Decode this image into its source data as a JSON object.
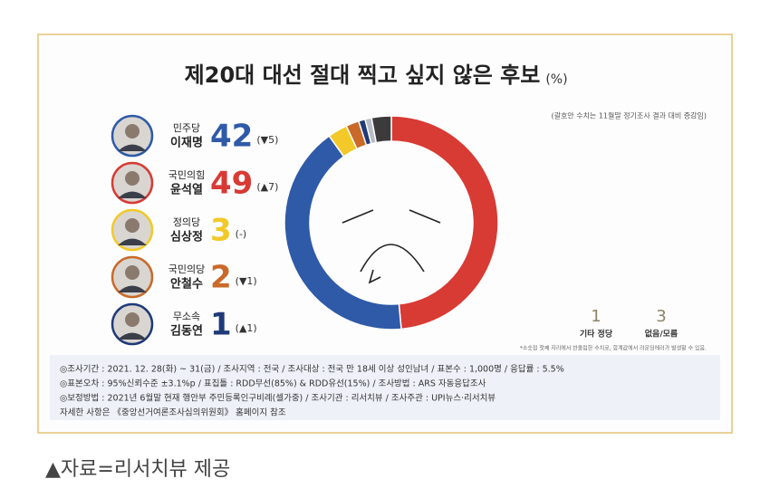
{
  "chart_data": {
    "type": "donut",
    "title": "제20대 대선 절대 찍고 싶지 않은 후보",
    "unit": "(%)",
    "note": "(괄호안 수치는 11월말 정기조사 결과 대비 증감임)",
    "candidates": [
      {
        "party": "민주당",
        "name": "이재명",
        "value": 42,
        "change": "(▼5)",
        "color": "#2f5aa8"
      },
      {
        "party": "국민의힘",
        "name": "윤석열",
        "value": 49,
        "change": "(▲7)",
        "color": "#d83a34"
      },
      {
        "party": "정의당",
        "name": "심상정",
        "value": 3,
        "change": "(-)",
        "color": "#f2c928"
      },
      {
        "party": "국민의당",
        "name": "안철수",
        "value": 2,
        "change": "(▼1)",
        "color": "#c96a2a"
      },
      {
        "party": "무소속",
        "name": "김동연",
        "value": 1,
        "change": "(▲1)",
        "color": "#1f3a78"
      }
    ],
    "others": [
      {
        "label": "기타 정당",
        "value": 1,
        "color": "#b8bcc6"
      },
      {
        "label": "없음/모름",
        "value": 3,
        "color": "#3b3b3b"
      }
    ],
    "footnote": "*소숫점 첫째 자리에서 반올림한 수치로, 합계값에서 라운딩에러가 발생할 수 있음.",
    "method": [
      "◎조사기간 : 2021. 12. 28(화) ~ 31(금) / 조사지역 : 전국 / 조사대상 : 전국 만 18세 이상 성인남녀 / 표본수 : 1,000명 / 응답률 : 5.5%",
      "◎표본오차 : 95%신뢰수준 ±3.1%p / 표집틀 : RDD무선(85%) & RDD유선(15%) / 조사방법 : ARS 자동응답조사",
      "◎보정방법 : 2021년 6월말 현재 행안부 주민등록인구비례(셀가중) / 조사기관 : 리서치뷰 / 조사주관 : UPI뉴스·리서치뷰",
      "자세한 사항은 《중앙선거여론조사심의위원회》 홈페이지 참조"
    ],
    "caption": "▲자료=리서치뷰 제공"
  }
}
